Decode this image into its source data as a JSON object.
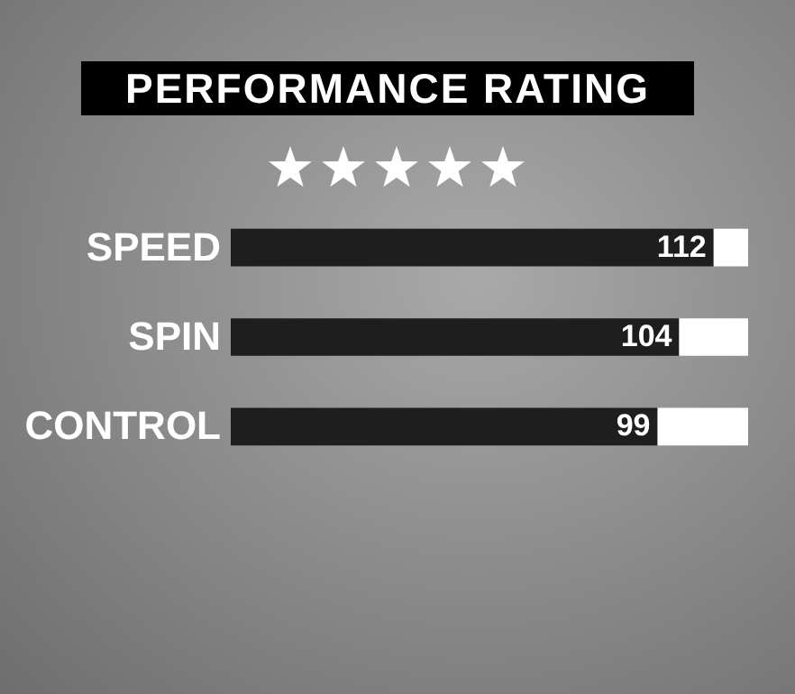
{
  "chart_data": {
    "type": "bar",
    "title": "PERFORMANCE RATING",
    "orientation": "horizontal",
    "stacked": true,
    "categories": [
      "SPEED",
      "SPIN",
      "CONTROL"
    ],
    "series": [
      {
        "color": "#1e1e1e",
        "values": [
          112,
          104,
          99
        ],
        "value_labels": [
          "112",
          "104",
          "99"
        ]
      },
      {
        "color": "#ffffff",
        "values": [
          8,
          16,
          21
        ]
      }
    ],
    "xlim": [
      0,
      120
    ],
    "tick_labels": "y"
  }
}
